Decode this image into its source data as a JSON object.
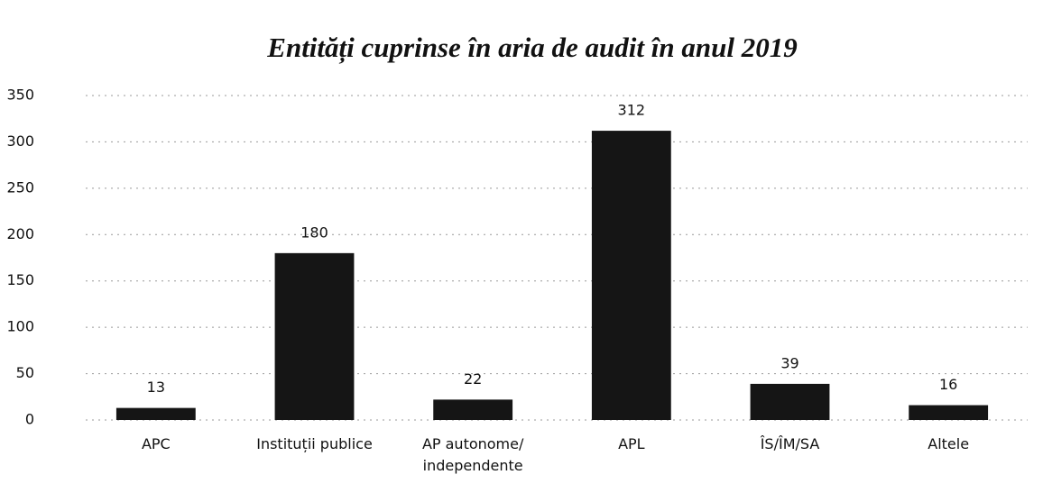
{
  "chart_data": {
    "type": "bar",
    "title": "Entități cuprinse în aria de audit în anul 2019",
    "categories": [
      "APC",
      "Instituții publice",
      "AP autonome/ independente",
      "APL",
      "ÎS/ÎM/SA",
      "Altele"
    ],
    "values": [
      13,
      180,
      22,
      312,
      39,
      16
    ],
    "color": "#151515",
    "ylim": [
      0,
      350
    ],
    "yticks": [
      0,
      50,
      100,
      150,
      200,
      250,
      300,
      350
    ],
    "grid": true
  }
}
